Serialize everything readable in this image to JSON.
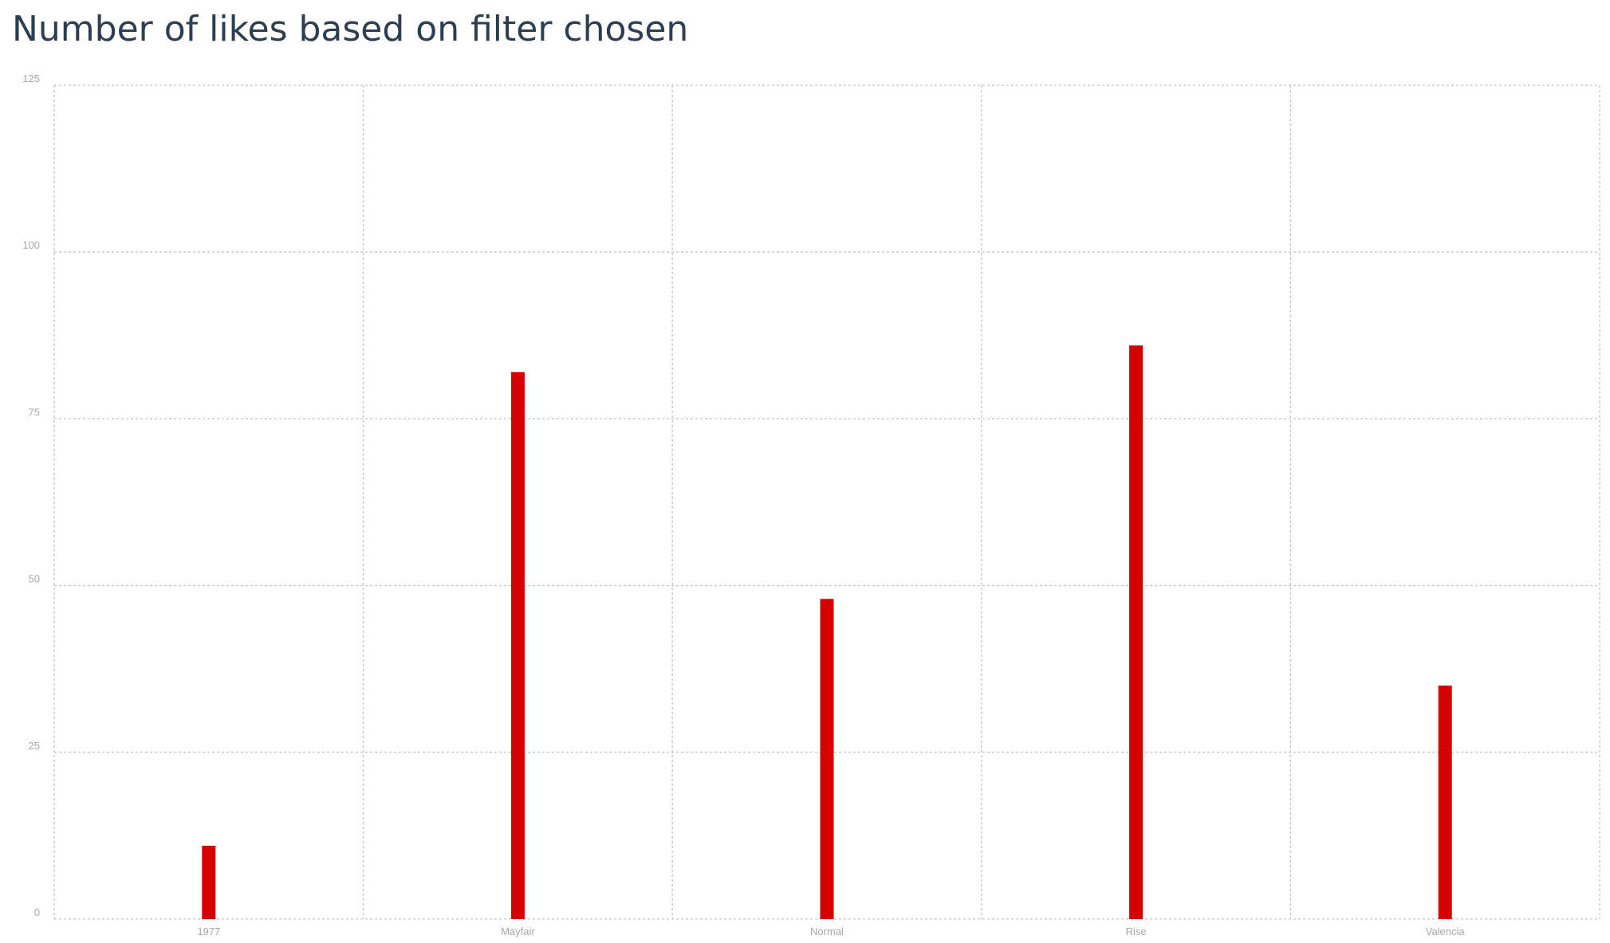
{
  "chart_data": {
    "type": "bar",
    "title": "Number of likes based on filter chosen",
    "xlabel": "",
    "ylabel": "",
    "categories": [
      "1977",
      "Mayfair",
      "Normal",
      "Rise",
      "Valencia"
    ],
    "values": [
      11,
      82,
      48,
      86,
      35
    ],
    "ylim": [
      0,
      125
    ],
    "yticks": [
      0,
      25,
      50,
      75,
      100,
      125
    ],
    "grid": true,
    "bar_color": "#d50000",
    "title_color": "#2c3e50",
    "tick_color": "#a8a8a8",
    "grid_color": "#c4c4c4"
  }
}
